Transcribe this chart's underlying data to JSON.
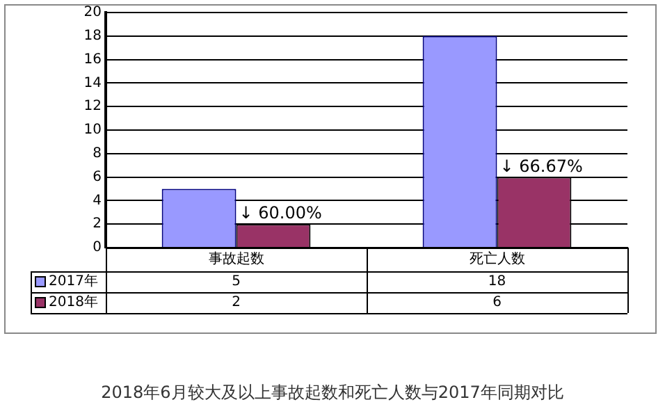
{
  "chart_data": {
    "type": "bar",
    "title": "2018年6月较大及以上事故起数和死亡人数与2017年同期对比",
    "categories": [
      "事故起数",
      "死亡人数"
    ],
    "series": [
      {
        "name": "2017年",
        "color": "#9999ff",
        "values": [
          5,
          18
        ]
      },
      {
        "name": "2018年",
        "color": "#993366",
        "values": [
          2,
          6
        ]
      }
    ],
    "ylim": [
      0,
      20
    ],
    "yticks": [
      0,
      2,
      4,
      6,
      8,
      10,
      12,
      14,
      16,
      18,
      20
    ],
    "grid": "y",
    "legend": "bottom left",
    "data_labels": true,
    "annotations": [
      {
        "text": "↓ 60.00%",
        "x": "事故起数",
        "y": 2
      },
      {
        "text": "↓ 66.67%",
        "x": "死亡人数",
        "y": 6
      }
    ]
  }
}
